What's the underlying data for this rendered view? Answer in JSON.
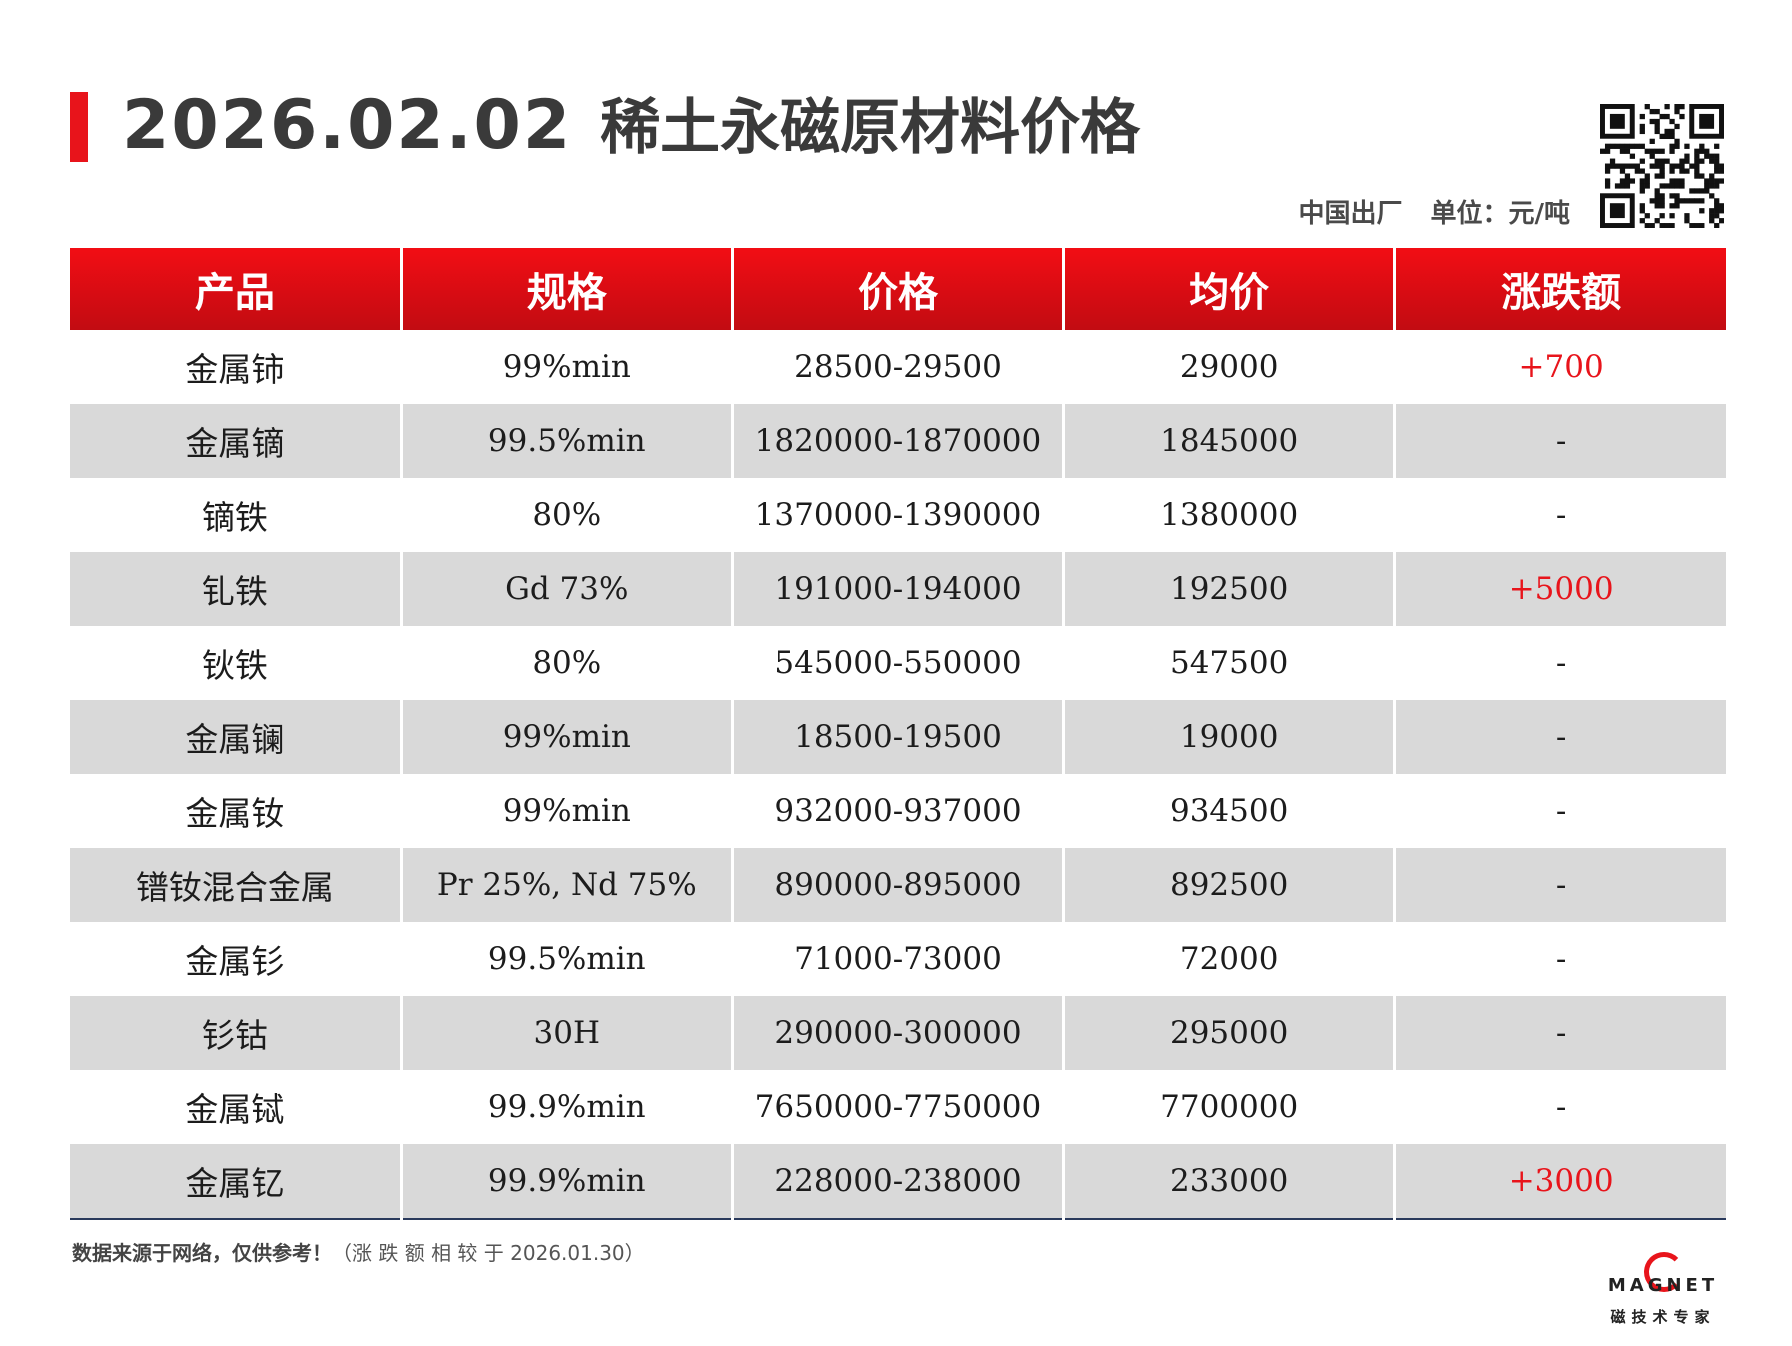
{
  "header": {
    "date": "2026.02.02",
    "title": "稀土永磁原材料价格",
    "origin": "中国出厂",
    "unit": "单位：元/吨"
  },
  "table": {
    "columns": [
      "产品",
      "规格",
      "价格",
      "均价",
      "涨跌额"
    ],
    "rows": [
      {
        "product": "金属铈",
        "spec": "99%min",
        "price": "28500-29500",
        "avg": "29000",
        "change": "+700"
      },
      {
        "product": "金属镝",
        "spec": "99.5%min",
        "price": "1820000-1870000",
        "avg": "1845000",
        "change": "-"
      },
      {
        "product": "镝铁",
        "spec": "80%",
        "price": "1370000-1390000",
        "avg": "1380000",
        "change": "-"
      },
      {
        "product": "钆铁",
        "spec": "Gd 73%",
        "price": "191000-194000",
        "avg": "192500",
        "change": "+5000"
      },
      {
        "product": "钬铁",
        "spec": "80%",
        "price": "545000-550000",
        "avg": "547500",
        "change": "-"
      },
      {
        "product": "金属镧",
        "spec": "99%min",
        "price": "18500-19500",
        "avg": "19000",
        "change": "-"
      },
      {
        "product": "金属钕",
        "spec": "99%min",
        "price": "932000-937000",
        "avg": "934500",
        "change": "-"
      },
      {
        "product": "镨钕混合金属",
        "spec": "Pr 25%, Nd 75%",
        "price": "890000-895000",
        "avg": "892500",
        "change": "-"
      },
      {
        "product": "金属钐",
        "spec": "99.5%min",
        "price": "71000-73000",
        "avg": "72000",
        "change": "-"
      },
      {
        "product": "钐钴",
        "spec": "30H",
        "price": "290000-300000",
        "avg": "295000",
        "change": "-"
      },
      {
        "product": "金属铽",
        "spec": "99.9%min",
        "price": "7650000-7750000",
        "avg": "7700000",
        "change": "-"
      },
      {
        "product": "金属钇",
        "spec": "99.9%min",
        "price": "228000-238000",
        "avg": "233000",
        "change": "+3000"
      }
    ]
  },
  "footer": {
    "note": "数据来源于网络，仅供参考！",
    "note_detail": "（涨 跌 额 相 较 于 2026.01.30）",
    "logo_word": "MAGNET",
    "logo_sub": "磁技术专家"
  },
  "colors": {
    "accent": "#e8141b",
    "row_alt": "#d9d9d9",
    "rise": "#e8141b"
  }
}
